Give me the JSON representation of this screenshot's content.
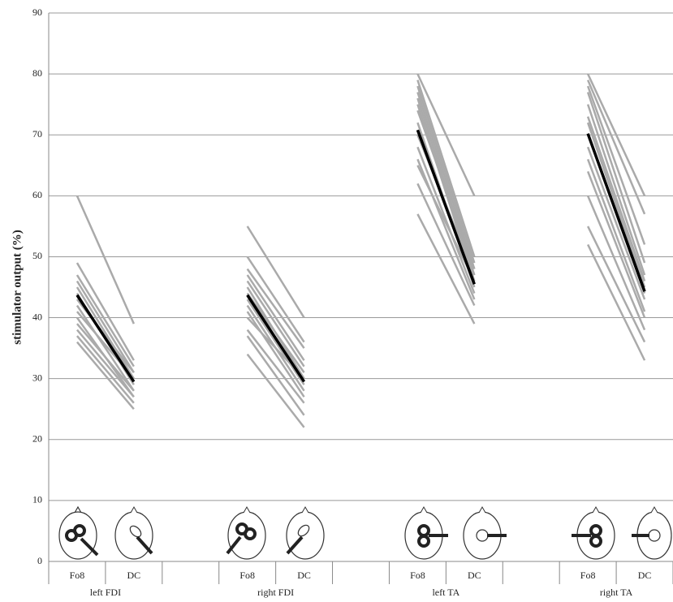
{
  "chart_data": {
    "type": "line",
    "y_label": "stimulator output (%)",
    "categories": [
      "Fo8",
      "DC",
      null,
      "Fo8",
      "DC",
      null,
      "Fo8",
      "DC",
      null,
      "Fo8",
      "DC"
    ],
    "groups": [
      "left FDI",
      null,
      null,
      "right FDI",
      null,
      null,
      "left TA",
      null,
      null,
      "right TA",
      null
    ],
    "ylim": [
      0,
      90
    ],
    "yticks": [
      0,
      10,
      20,
      30,
      40,
      50,
      60,
      70,
      80,
      90
    ],
    "grid": true,
    "series": [
      {
        "color": "#aaaaaa",
        "values": [
          60,
          39,
          null,
          55,
          40,
          null,
          80,
          60,
          null,
          80,
          60
        ]
      },
      {
        "color": "#aaaaaa",
        "values": [
          49,
          33,
          null,
          50,
          36,
          null,
          79,
          50,
          null,
          79,
          57
        ]
      },
      {
        "color": "#aaaaaa",
        "values": [
          47,
          32,
          null,
          48,
          35,
          null,
          78,
          49,
          null,
          78,
          52
        ]
      },
      {
        "color": "#aaaaaa",
        "values": [
          46,
          31,
          null,
          47,
          33,
          null,
          77,
          48,
          null,
          77,
          49
        ]
      },
      {
        "color": "#aaaaaa",
        "values": [
          45,
          30,
          null,
          46,
          32,
          null,
          76,
          47,
          null,
          75,
          47
        ]
      },
      {
        "color": "#aaaaaa",
        "values": [
          44,
          29,
          null,
          45,
          30,
          null,
          75,
          46,
          null,
          73,
          46
        ]
      },
      {
        "color": "#aaaaaa",
        "values": [
          43,
          31,
          null,
          44,
          31,
          null,
          74,
          48,
          null,
          72,
          45
        ]
      },
      {
        "color": "#aaaaaa",
        "values": [
          42,
          28,
          null,
          43,
          29,
          null,
          72,
          45,
          null,
          70,
          44
        ]
      },
      {
        "color": "#aaaaaa",
        "values": [
          41,
          30,
          null,
          42,
          28,
          null,
          70,
          47,
          null,
          68,
          43
        ]
      },
      {
        "color": "#aaaaaa",
        "values": [
          40,
          27,
          null,
          41,
          27,
          null,
          68,
          44,
          null,
          66,
          41
        ]
      },
      {
        "color": "#aaaaaa",
        "values": [
          39,
          28,
          null,
          40,
          30,
          null,
          66,
          43,
          null,
          64,
          40
        ]
      },
      {
        "color": "#aaaaaa",
        "values": [
          38,
          27,
          null,
          38,
          26,
          null,
          65,
          46,
          null,
          60,
          38
        ]
      },
      {
        "color": "#aaaaaa",
        "values": [
          37,
          26,
          null,
          37,
          24,
          null,
          62,
          42,
          null,
          55,
          36
        ]
      },
      {
        "color": "#aaaaaa",
        "values": [
          36,
          25,
          null,
          34,
          22,
          null,
          57,
          39,
          null,
          52,
          33
        ]
      },
      {
        "color": "#000000",
        "values": [
          43.7,
          29.5,
          null,
          43.7,
          29.5,
          null,
          70.8,
          45.5,
          null,
          70.2,
          44.3
        ]
      }
    ]
  }
}
